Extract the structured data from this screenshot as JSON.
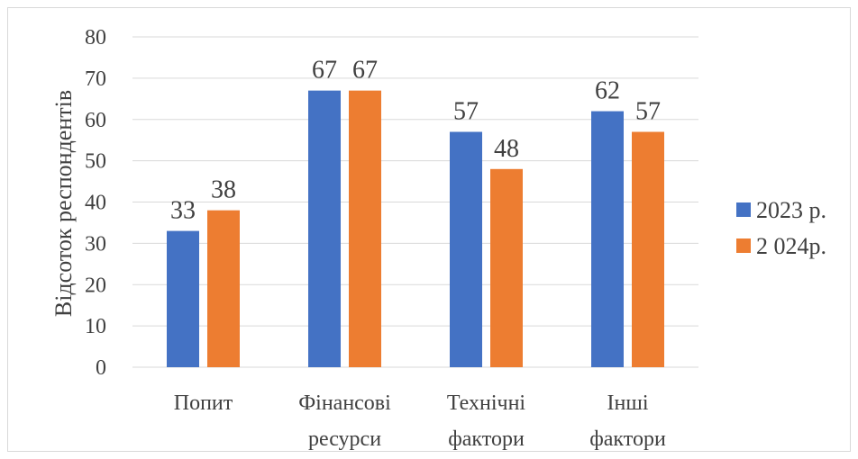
{
  "chart_data": {
    "type": "bar",
    "title": "",
    "xlabel": "",
    "ylabel": "Відсоток респондентів",
    "ylim": [
      0,
      80
    ],
    "yticks": [
      0,
      10,
      20,
      30,
      40,
      50,
      60,
      70,
      80
    ],
    "grid": true,
    "legend_position": "right",
    "categories": [
      [
        "Попит"
      ],
      [
        "Фінансові",
        "ресурси"
      ],
      [
        "Технічні",
        "фактори"
      ],
      [
        "Інші",
        "фактори"
      ]
    ],
    "series": [
      {
        "name": "2023 р.",
        "color": "#4472C4",
        "values": [
          33,
          67,
          57,
          62
        ]
      },
      {
        "name": "2 024р.",
        "color": "#ED7D31",
        "values": [
          38,
          67,
          48,
          57
        ]
      }
    ]
  }
}
